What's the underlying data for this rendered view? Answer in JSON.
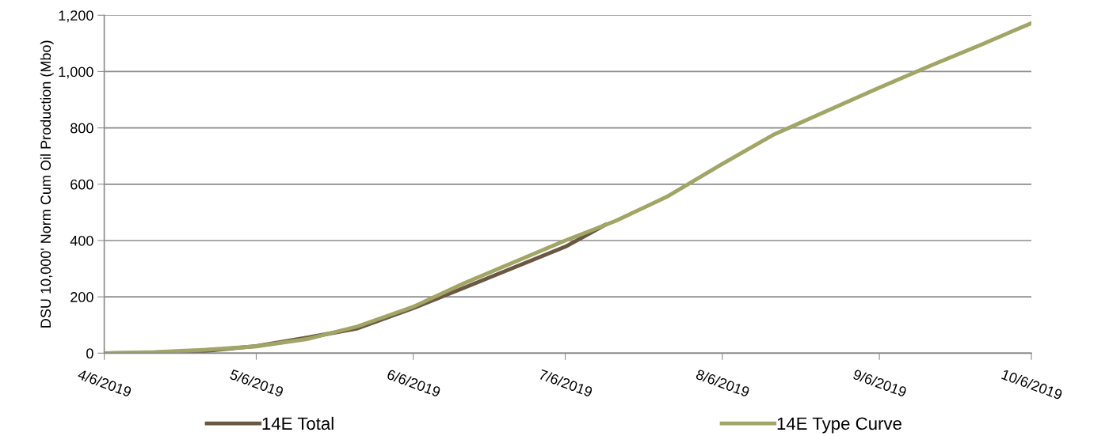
{
  "chart_data": {
    "type": "line",
    "ylabel": "DSU 10,000' Norm Cum Oil Production (Mbo)",
    "xlim": [
      "2019-04-06",
      "2019-10-06"
    ],
    "xticks": [
      {
        "value": "2019-04-06",
        "label": "4/6/2019"
      },
      {
        "value": "2019-05-06",
        "label": "5/6/2019"
      },
      {
        "value": "2019-06-06",
        "label": "6/6/2019"
      },
      {
        "value": "2019-07-06",
        "label": "7/6/2019"
      },
      {
        "value": "2019-08-06",
        "label": "8/6/2019"
      },
      {
        "value": "2019-09-06",
        "label": "9/6/2019"
      },
      {
        "value": "2019-10-06",
        "label": "10/6/2019"
      }
    ],
    "ylim": [
      0,
      1200
    ],
    "yticks": [
      {
        "value": 0,
        "label": "0"
      },
      {
        "value": 200,
        "label": "200"
      },
      {
        "value": 400,
        "label": "400"
      },
      {
        "value": 600,
        "label": "600"
      },
      {
        "value": 800,
        "label": "800"
      },
      {
        "value": 1000,
        "label": "1,000"
      },
      {
        "value": 1200,
        "label": "1,200"
      }
    ],
    "grid": "y",
    "legend": "bottom",
    "marker": "none",
    "line_style": "solid",
    "series": [
      {
        "name": "14E Total",
        "color": "#6b5843",
        "x": [
          "2019-04-06",
          "2019-04-16",
          "2019-04-26",
          "2019-05-06",
          "2019-05-16",
          "2019-05-26",
          "2019-06-06",
          "2019-06-16",
          "2019-06-26",
          "2019-07-06",
          "2019-07-14"
        ],
        "values": [
          0,
          2,
          8,
          25,
          55,
          88,
          160,
          232,
          305,
          378,
          457
        ]
      },
      {
        "name": "14E Type Curve",
        "color": "#a1a566",
        "x": [
          "2019-04-06",
          "2019-04-16",
          "2019-04-26",
          "2019-05-06",
          "2019-05-16",
          "2019-05-26",
          "2019-06-06",
          "2019-06-16",
          "2019-06-26",
          "2019-07-06",
          "2019-07-16",
          "2019-07-26",
          "2019-08-06",
          "2019-08-16",
          "2019-08-26",
          "2019-09-06",
          "2019-09-16",
          "2019-09-26",
          "2019-10-06"
        ],
        "values": [
          0,
          4,
          12,
          24,
          50,
          95,
          165,
          248,
          324,
          400,
          470,
          555,
          672,
          775,
          855,
          943,
          1020,
          1095,
          1172
        ]
      }
    ]
  }
}
